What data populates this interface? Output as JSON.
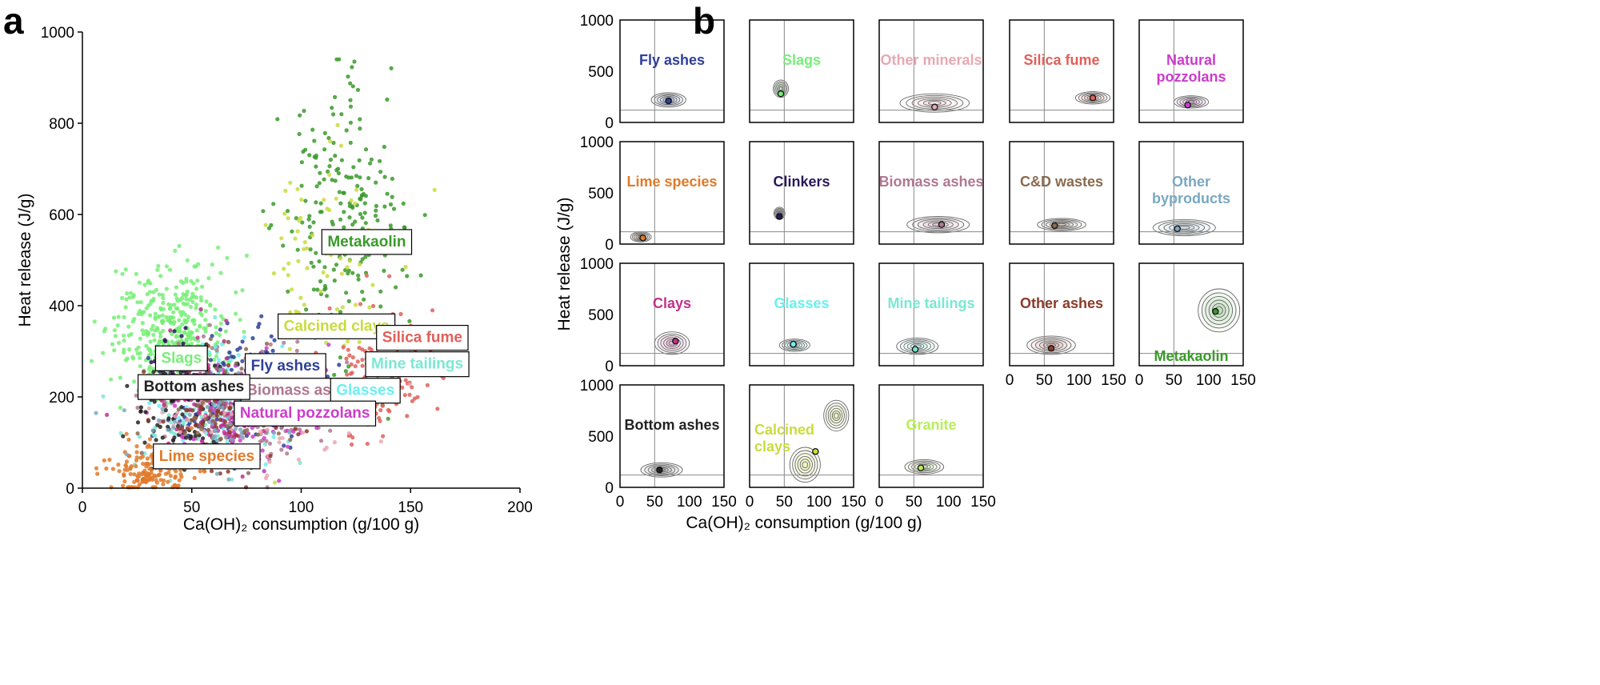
{
  "figure": {
    "panel_a_letter": "a",
    "panel_b_letter": "b"
  },
  "chart_data": [
    {
      "type": "scatter",
      "panel": "a",
      "xlabel": "Ca(OH)₂ consumption (g/100 g)",
      "ylabel": "Heat release (J/g)",
      "xlim": [
        0,
        200
      ],
      "ylim": [
        0,
        1000
      ],
      "xticks": [
        "0",
        "50",
        "100",
        "150",
        "200"
      ],
      "yticks": [
        "0",
        "200",
        "400",
        "600",
        "800",
        "1000"
      ],
      "grid": false,
      "legend": "inline boxed labels",
      "series": [
        {
          "name": "Slags",
          "color": "#77ee77",
          "center": [
            40,
            340
          ],
          "spread": [
            13,
            70
          ],
          "count": 420,
          "label_at": [
            36,
            275
          ]
        },
        {
          "name": "Metakaolin",
          "color": "#3a9a2a",
          "center": [
            118,
            560
          ],
          "spread": [
            14,
            150
          ],
          "count": 230,
          "label_at": [
            112,
            530
          ]
        },
        {
          "name": "Calcined clays",
          "color": "#c8dc3c",
          "center": [
            112,
            500
          ],
          "spread": [
            16,
            140
          ],
          "count": 80,
          "label_at": [
            92,
            345
          ]
        },
        {
          "name": "Silica fume",
          "color": "#e0605a",
          "center": [
            135,
            260
          ],
          "spread": [
            13,
            70
          ],
          "count": 150,
          "label_at": [
            137,
            320
          ]
        },
        {
          "name": "Fly ashes",
          "color": "#2f3f9a",
          "center": [
            68,
            200
          ],
          "spread": [
            16,
            70
          ],
          "count": 200,
          "label_at": [
            77,
            258
          ]
        },
        {
          "name": "Mine tailings",
          "color": "#7ae8d2",
          "center": [
            55,
            170
          ],
          "spread": [
            20,
            70
          ],
          "count": 90,
          "label_at": [
            132,
            262
          ]
        },
        {
          "name": "Biomass ashes",
          "color": "#b07890",
          "center": [
            75,
            190
          ],
          "spread": [
            20,
            70
          ],
          "count": 150,
          "label_at": [
            75,
            204
          ]
        },
        {
          "name": "Glasses",
          "color": "#6af0f0",
          "center": [
            68,
            200
          ],
          "spread": [
            14,
            60
          ],
          "count": 90,
          "label_at": [
            116,
            204
          ]
        },
        {
          "name": "Natural pozzolans",
          "color": "#cc3ccc",
          "center": [
            72,
            170
          ],
          "spread": [
            17,
            60
          ],
          "count": 150,
          "label_at": [
            72,
            154
          ]
        },
        {
          "name": "Bottom ashes",
          "color": "#222222",
          "center": [
            45,
            160
          ],
          "spread": [
            11,
            60
          ],
          "count": 110,
          "label_at": [
            28,
            212
          ]
        },
        {
          "name": "Lime species",
          "color": "#e07a2a",
          "center": [
            30,
            40
          ],
          "spread": [
            10,
            30
          ],
          "count": 150,
          "label_at": [
            35,
            60
          ]
        },
        {
          "name": "Clays",
          "color": "#c0328a",
          "center": [
            62,
            190
          ],
          "spread": [
            14,
            70
          ],
          "count": 110
        },
        {
          "name": "Clinkers",
          "color": "#2a1a5a",
          "center": [
            42,
            270
          ],
          "spread": [
            5,
            40
          ],
          "count": 40
        },
        {
          "name": "Other minerals",
          "color": "#e8a8b4",
          "center": [
            75,
            150
          ],
          "spread": [
            25,
            60
          ],
          "count": 70
        },
        {
          "name": "Other ashes",
          "color": "#8b3a2a",
          "center": [
            62,
            170
          ],
          "spread": [
            16,
            60
          ],
          "count": 90
        },
        {
          "name": "C&D wastes",
          "color": "#8a6a4e",
          "center": [
            65,
            180
          ],
          "spread": [
            15,
            60
          ],
          "count": 70
        },
        {
          "name": "Other byproducts",
          "color": "#7aa8c0",
          "center": [
            55,
            150
          ],
          "spread": [
            20,
            60
          ],
          "count": 60
        }
      ]
    },
    {
      "type": "contour",
      "panel": "b",
      "xlabel": "Ca(OH)₂ consumption (g/100 g)",
      "ylabel": "Heat release (J/g)",
      "xlim": [
        0,
        150
      ],
      "ylim": [
        0,
        1000
      ],
      "xticks": [
        "0",
        "50",
        "100",
        "150"
      ],
      "yticks": [
        "0",
        "500",
        "1000"
      ],
      "reference_lines": {
        "x": 50,
        "y": 120
      },
      "subplots": [
        {
          "name": "Fly ashes",
          "color": "#2f3f9a",
          "row": 0,
          "col": 0,
          "mean": [
            70,
            210
          ],
          "contours": [
            [
              70,
              220,
              25,
              70
            ]
          ]
        },
        {
          "name": "Slags",
          "color": "#77ee77",
          "row": 0,
          "col": 1,
          "mean": [
            45,
            280
          ],
          "contours": [
            [
              45,
              330,
              11,
              85
            ]
          ]
        },
        {
          "name": "Other minerals",
          "color": "#e8a8b4",
          "row": 0,
          "col": 2,
          "mean": [
            80,
            150
          ],
          "contours": [
            [
              80,
              190,
              50,
              90
            ]
          ]
        },
        {
          "name": "Silica fume",
          "color": "#e0605a",
          "row": 0,
          "col": 3,
          "mean": [
            120,
            240
          ],
          "contours": [
            [
              120,
              240,
              25,
              60
            ]
          ]
        },
        {
          "name": "Natural\npozzolans",
          "color": "#cc3ccc",
          "row": 0,
          "col": 4,
          "mean": [
            70,
            170
          ],
          "contours": [
            [
              75,
              200,
              25,
              60
            ]
          ]
        },
        {
          "name": "Lime species",
          "color": "#e07a2a",
          "row": 1,
          "col": 0,
          "mean": [
            33,
            60
          ],
          "contours": [
            [
              30,
              70,
              15,
              50
            ]
          ]
        },
        {
          "name": "Clinkers",
          "color": "#2a1a5a",
          "row": 1,
          "col": 1,
          "mean": [
            43,
            270
          ],
          "contours": [
            [
              43,
              300,
              8,
              60
            ]
          ]
        },
        {
          "name": "Biomass ashes",
          "color": "#b07890",
          "row": 1,
          "col": 2,
          "mean": [
            90,
            190
          ],
          "contours": [
            [
              85,
              190,
              45,
              80
            ]
          ]
        },
        {
          "name": "C&D wastes",
          "color": "#8a6a4e",
          "row": 1,
          "col": 3,
          "mean": [
            65,
            180
          ],
          "contours": [
            [
              75,
              190,
              35,
              60
            ]
          ]
        },
        {
          "name": "Other\nbyproducts",
          "color": "#7aa8c0",
          "row": 1,
          "col": 4,
          "mean": [
            55,
            150
          ],
          "contours": [
            [
              65,
              160,
              45,
              80
            ]
          ]
        },
        {
          "name": "Clays",
          "color": "#c0328a",
          "row": 2,
          "col": 0,
          "mean": [
            80,
            240
          ],
          "contours": [
            [
              75,
              220,
              25,
              110
            ]
          ]
        },
        {
          "name": "Glasses",
          "color": "#6af0f0",
          "row": 2,
          "col": 1,
          "mean": [
            63,
            210
          ],
          "contours": [
            [
              65,
              200,
              22,
              60
            ]
          ]
        },
        {
          "name": "Mine tailings",
          "color": "#7ae8d2",
          "row": 2,
          "col": 2,
          "mean": [
            52,
            160
          ],
          "contours": [
            [
              55,
              190,
              30,
              80
            ]
          ]
        },
        {
          "name": "Other ashes",
          "color": "#8b3a2a",
          "row": 2,
          "col": 3,
          "mean": [
            60,
            170
          ],
          "contours": [
            [
              60,
              200,
              35,
              90
            ]
          ]
        },
        {
          "name": "Metakaolin",
          "color": "#3a9a2a",
          "row": 2,
          "col": 4,
          "mean": [
            110,
            530
          ],
          "contours": [
            [
              115,
              540,
              30,
              210
            ]
          ]
        },
        {
          "name": "Bottom ashes",
          "color": "#222222",
          "row": 3,
          "col": 0,
          "mean": [
            57,
            170
          ],
          "contours": [
            [
              60,
              170,
              30,
              70
            ]
          ]
        },
        {
          "name": "Calcined\nclays",
          "color": "#c8dc3c",
          "row": 3,
          "col": 1,
          "mean": [
            95,
            350
          ],
          "contours": [
            [
              80,
              220,
              22,
              170
            ],
            [
              125,
              700,
              18,
              150
            ]
          ]
        },
        {
          "name": "Granite",
          "color": "#b8ee5a",
          "row": 3,
          "col": 2,
          "mean": [
            60,
            190
          ],
          "contours": [
            [
              65,
              200,
              28,
              70
            ]
          ]
        }
      ]
    }
  ]
}
